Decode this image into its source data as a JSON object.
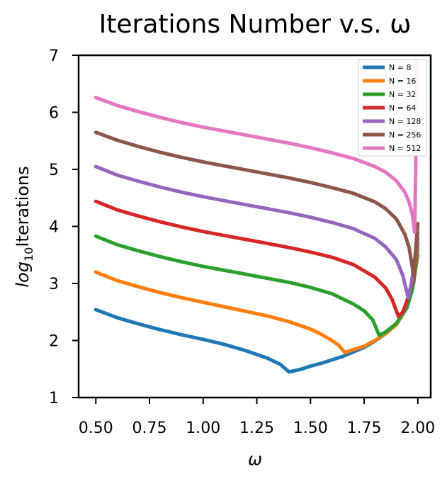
{
  "chart_data": {
    "type": "line",
    "title": "Iterations Number v.s. ω",
    "xlabel": "ω",
    "ylabel_base": "log",
    "ylabel_sub": "10",
    "ylabel_rest": "Iterations",
    "xlim": [
      0.42,
      2.06
    ],
    "ylim": [
      1,
      7
    ],
    "xticks": [
      0.5,
      0.75,
      1.0,
      1.25,
      1.5,
      1.75,
      2.0
    ],
    "xtick_labels": [
      "0.50",
      "0.75",
      "1.00",
      "1.25",
      "1.50",
      "1.75",
      "2.00"
    ],
    "yticks": [
      1,
      2,
      3,
      4,
      5,
      6,
      7
    ],
    "ytick_labels": [
      "1",
      "2",
      "3",
      "4",
      "5",
      "6",
      "7"
    ],
    "grid": false,
    "legend_position": "top-right",
    "series": [
      {
        "name": "N = 8",
        "color": "#1f77b4",
        "points": [
          [
            0.5,
            2.54
          ],
          [
            0.6,
            2.4
          ],
          [
            0.7,
            2.29
          ],
          [
            0.8,
            2.19
          ],
          [
            0.9,
            2.1
          ],
          [
            1.0,
            2.02
          ],
          [
            1.1,
            1.93
          ],
          [
            1.2,
            1.82
          ],
          [
            1.3,
            1.69
          ],
          [
            1.36,
            1.58
          ],
          [
            1.4,
            1.45
          ],
          [
            1.45,
            1.49
          ],
          [
            1.5,
            1.55
          ],
          [
            1.55,
            1.6
          ],
          [
            1.6,
            1.66
          ],
          [
            1.65,
            1.72
          ],
          [
            1.7,
            1.8
          ],
          [
            1.75,
            1.88
          ],
          [
            1.8,
            1.99
          ],
          [
            1.85,
            2.12
          ],
          [
            1.9,
            2.28
          ],
          [
            1.95,
            2.58
          ],
          [
            1.975,
            2.9
          ],
          [
            2.0,
            3.5
          ]
        ]
      },
      {
        "name": "N = 16",
        "color": "#ff7f0e",
        "points": [
          [
            0.5,
            3.2
          ],
          [
            0.6,
            3.05
          ],
          [
            0.7,
            2.94
          ],
          [
            0.8,
            2.84
          ],
          [
            0.9,
            2.75
          ],
          [
            1.0,
            2.67
          ],
          [
            1.1,
            2.59
          ],
          [
            1.2,
            2.51
          ],
          [
            1.3,
            2.43
          ],
          [
            1.4,
            2.33
          ],
          [
            1.5,
            2.2
          ],
          [
            1.55,
            2.11
          ],
          [
            1.6,
            2.0
          ],
          [
            1.63,
            1.92
          ],
          [
            1.66,
            1.79
          ],
          [
            1.7,
            1.84
          ],
          [
            1.75,
            1.9
          ],
          [
            1.8,
            2.0
          ],
          [
            1.85,
            2.12
          ],
          [
            1.9,
            2.28
          ],
          [
            1.95,
            2.6
          ],
          [
            1.98,
            3.0
          ],
          [
            2.0,
            3.6
          ]
        ]
      },
      {
        "name": "N = 32",
        "color": "#2ca02c",
        "points": [
          [
            0.5,
            3.83
          ],
          [
            0.6,
            3.68
          ],
          [
            0.7,
            3.57
          ],
          [
            0.8,
            3.47
          ],
          [
            0.9,
            3.38
          ],
          [
            1.0,
            3.3
          ],
          [
            1.1,
            3.23
          ],
          [
            1.2,
            3.16
          ],
          [
            1.3,
            3.09
          ],
          [
            1.4,
            3.02
          ],
          [
            1.5,
            2.93
          ],
          [
            1.6,
            2.82
          ],
          [
            1.7,
            2.64
          ],
          [
            1.75,
            2.52
          ],
          [
            1.79,
            2.36
          ],
          [
            1.82,
            2.09
          ],
          [
            1.85,
            2.15
          ],
          [
            1.9,
            2.3
          ],
          [
            1.95,
            2.6
          ],
          [
            1.98,
            3.0
          ],
          [
            2.0,
            3.7
          ]
        ]
      },
      {
        "name": "N = 64",
        "color": "#d62728",
        "points": [
          [
            0.5,
            4.44
          ],
          [
            0.6,
            4.29
          ],
          [
            0.7,
            4.18
          ],
          [
            0.8,
            4.08
          ],
          [
            0.9,
            3.99
          ],
          [
            1.0,
            3.91
          ],
          [
            1.1,
            3.84
          ],
          [
            1.2,
            3.77
          ],
          [
            1.3,
            3.7
          ],
          [
            1.4,
            3.63
          ],
          [
            1.5,
            3.55
          ],
          [
            1.6,
            3.46
          ],
          [
            1.7,
            3.33
          ],
          [
            1.8,
            3.11
          ],
          [
            1.85,
            2.92
          ],
          [
            1.88,
            2.72
          ],
          [
            1.91,
            2.42
          ],
          [
            1.93,
            2.5
          ],
          [
            1.95,
            2.7
          ],
          [
            1.98,
            3.1
          ],
          [
            2.0,
            3.8
          ]
        ]
      },
      {
        "name": "N = 128",
        "color": "#9467bd",
        "points": [
          [
            0.5,
            5.05
          ],
          [
            0.6,
            4.9
          ],
          [
            0.7,
            4.79
          ],
          [
            0.8,
            4.69
          ],
          [
            0.9,
            4.6
          ],
          [
            1.0,
            4.52
          ],
          [
            1.1,
            4.45
          ],
          [
            1.2,
            4.38
          ],
          [
            1.3,
            4.31
          ],
          [
            1.4,
            4.24
          ],
          [
            1.5,
            4.16
          ],
          [
            1.6,
            4.07
          ],
          [
            1.7,
            3.96
          ],
          [
            1.8,
            3.79
          ],
          [
            1.85,
            3.64
          ],
          [
            1.9,
            3.42
          ],
          [
            1.93,
            3.14
          ],
          [
            1.955,
            2.75
          ],
          [
            1.97,
            3.0
          ],
          [
            1.99,
            3.5
          ],
          [
            2.0,
            3.9
          ]
        ]
      },
      {
        "name": "N = 256",
        "color": "#8c564b",
        "points": [
          [
            0.5,
            5.65
          ],
          [
            0.6,
            5.51
          ],
          [
            0.7,
            5.4
          ],
          [
            0.8,
            5.3
          ],
          [
            0.9,
            5.21
          ],
          [
            1.0,
            5.13
          ],
          [
            1.1,
            5.06
          ],
          [
            1.2,
            4.99
          ],
          [
            1.3,
            4.92
          ],
          [
            1.4,
            4.85
          ],
          [
            1.5,
            4.77
          ],
          [
            1.6,
            4.68
          ],
          [
            1.7,
            4.58
          ],
          [
            1.8,
            4.43
          ],
          [
            1.85,
            4.31
          ],
          [
            1.9,
            4.13
          ],
          [
            1.94,
            3.86
          ],
          [
            1.96,
            3.62
          ],
          [
            1.98,
            3.15
          ],
          [
            1.99,
            3.6
          ],
          [
            2.0,
            4.05
          ]
        ]
      },
      {
        "name": "N = 512",
        "color": "#e377c2",
        "points": [
          [
            0.5,
            6.26
          ],
          [
            0.6,
            6.12
          ],
          [
            0.7,
            6.01
          ],
          [
            0.8,
            5.91
          ],
          [
            0.9,
            5.82
          ],
          [
            1.0,
            5.74
          ],
          [
            1.1,
            5.67
          ],
          [
            1.2,
            5.6
          ],
          [
            1.3,
            5.53
          ],
          [
            1.4,
            5.46
          ],
          [
            1.5,
            5.38
          ],
          [
            1.6,
            5.29
          ],
          [
            1.7,
            5.19
          ],
          [
            1.8,
            5.05
          ],
          [
            1.85,
            4.95
          ],
          [
            1.9,
            4.8
          ],
          [
            1.94,
            4.6
          ],
          [
            1.96,
            4.42
          ],
          [
            1.975,
            4.2
          ],
          [
            1.985,
            3.9
          ],
          [
            1.99,
            5.0
          ],
          [
            1.993,
            6.2
          ],
          [
            1.995,
            6.9
          ]
        ]
      }
    ]
  }
}
